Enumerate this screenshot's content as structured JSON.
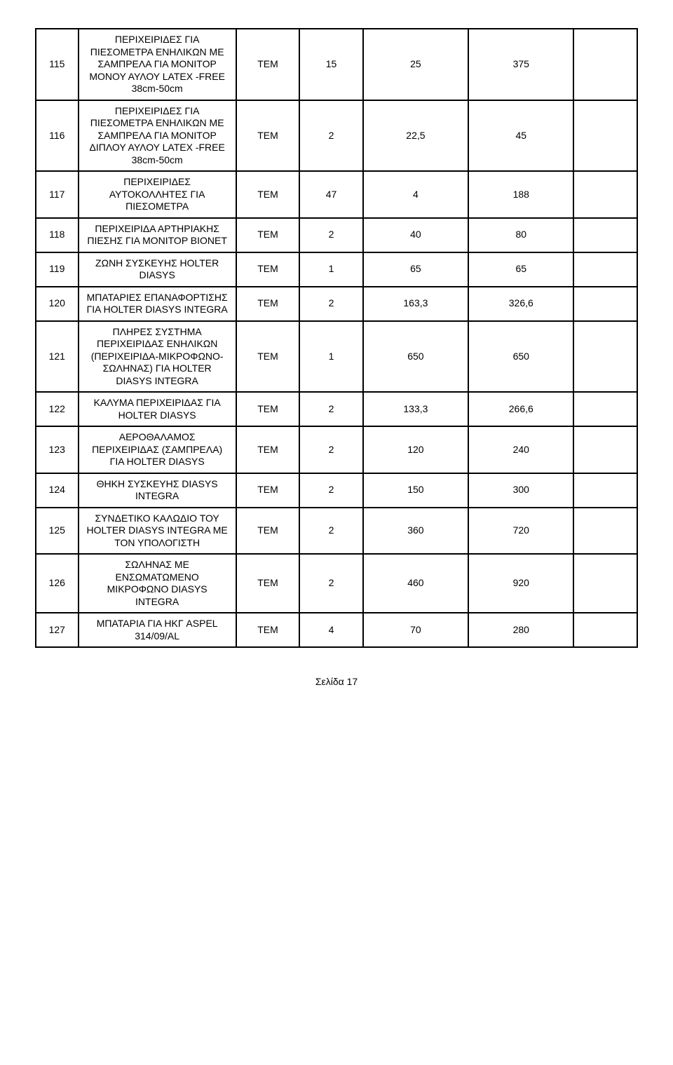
{
  "rows": [
    {
      "n": "115",
      "desc": "ΠΕΡΙΧΕΙΡΙΔΕΣ ΓΙΑ ΠΙΕΣΟΜΕΤΡΑ ΕΝΗΛΙΚΩΝ ΜΕ ΣΑΜΠΡΕΛΑ ΓΙΑ ΜΟΝΙΤΟΡ ΜΟΝΟΥ ΑΥΛΟΥ LATEX -FREE 38cm-50cm",
      "unit": "TEM",
      "qty": "15",
      "price": "25",
      "total": "375"
    },
    {
      "n": "116",
      "desc": "ΠΕΡΙΧΕΙΡΙΔΕΣ ΓΙΑ ΠΙΕΣΟΜΕΤΡΑ ΕΝΗΛΙΚΩΝ ΜΕ ΣΑΜΠΡΕΛΑ ΓΙΑ ΜΟΝΙΤΟΡ ΔΙΠΛΟΥ ΑΥΛΟΥ LATEX -FREE 38cm-50cm",
      "unit": "TEM",
      "qty": "2",
      "price": "22,5",
      "total": "45"
    },
    {
      "n": "117",
      "desc": "ΠΕΡΙΧΕΙΡΙΔΕΣ ΑΥΤΟΚΟΛΛΗΤΕΣ ΓΙΑ ΠΙΕΣΟΜΕΤΡΑ",
      "unit": "TEM",
      "qty": "47",
      "price": "4",
      "total": "188"
    },
    {
      "n": "118",
      "desc": "ΠΕΡΙΧΕΙΡΙΔΑ ΑΡΤΗΡΙΑΚΗΣ ΠΙΕΣΗΣ ΓΙΑ ΜΟΝΙΤΟΡ BIONET",
      "unit": "TEM",
      "qty": "2",
      "price": "40",
      "total": "80"
    },
    {
      "n": "119",
      "desc": "ΖΩΝΗ ΣΥΣΚΕΥΗΣ HOLTER DIASYS",
      "unit": "TEM",
      "qty": "1",
      "price": "65",
      "total": "65"
    },
    {
      "n": "120",
      "desc": "ΜΠΑΤΑΡΙΕΣ ΕΠΑΝΑΦΟΡΤΙΣΗΣ ΓΙΑ HOLTER DIASYS INTEGRA",
      "unit": "TEM",
      "qty": "2",
      "price": "163,3",
      "total": "326,6"
    },
    {
      "n": "121",
      "desc": "ΠΛΗΡΕΣ ΣΥΣΤΗΜΑ ΠΕΡΙΧΕΙΡΙΔΑΣ ΕΝΗΛΙΚΩΝ (ΠΕΡΙΧΕΙΡΙΔΑ-ΜΙΚΡΟΦΩΝΟ-ΣΩΛΗΝΑΣ) ΓΙΑ HOLTER DIASYS INTEGRA",
      "unit": "TEM",
      "qty": "1",
      "price": "650",
      "total": "650"
    },
    {
      "n": "122",
      "desc": "ΚΑΛΥΜΑ ΠΕΡΙΧΕΙΡΙΔΑΣ ΓΙΑ HOLTER DIASYS",
      "unit": "TEM",
      "qty": "2",
      "price": "133,3",
      "total": "266,6"
    },
    {
      "n": "123",
      "desc": "ΑΕΡΟΘΑΛΑΜΟΣ ΠΕΡΙΧΕΙΡΙΔΑΣ (ΣΑΜΠΡΕΛΑ) ΓΙΑ HOLTER DIASYS",
      "unit": "TEM",
      "qty": "2",
      "price": "120",
      "total": "240"
    },
    {
      "n": "124",
      "desc": "ΘΗΚΗ ΣΥΣΚΕΥΗΣ DIASYS INTEGRA",
      "unit": "TEM",
      "qty": "2",
      "price": "150",
      "total": "300"
    },
    {
      "n": "125",
      "desc": "ΣΥΝΔΕΤΙΚΟ ΚΑΛΩΔΙΟ ΤΟΥ HOLTER DIASYS INTEGRA ΜΕ ΤΟΝ ΥΠΟΛΟΓΙΣΤΗ",
      "unit": "TEM",
      "qty": "2",
      "price": "360",
      "total": "720"
    },
    {
      "n": "126",
      "desc": "ΣΩΛΗΝΑΣ ΜΕ ΕΝΣΩΜΑΤΩΜΕΝΟ ΜΙΚΡΟΦΩΝΟ DIASYS INTEGRA",
      "unit": "TEM",
      "qty": "2",
      "price": "460",
      "total": "920"
    },
    {
      "n": "127",
      "desc": "ΜΠΑΤΑΡΙΑ ΓΙΑ ΗΚΓ ASPEL 314/09/AL",
      "unit": "TEM",
      "qty": "4",
      "price": "70",
      "total": "280"
    }
  ],
  "footer": "Σελίδα 17"
}
